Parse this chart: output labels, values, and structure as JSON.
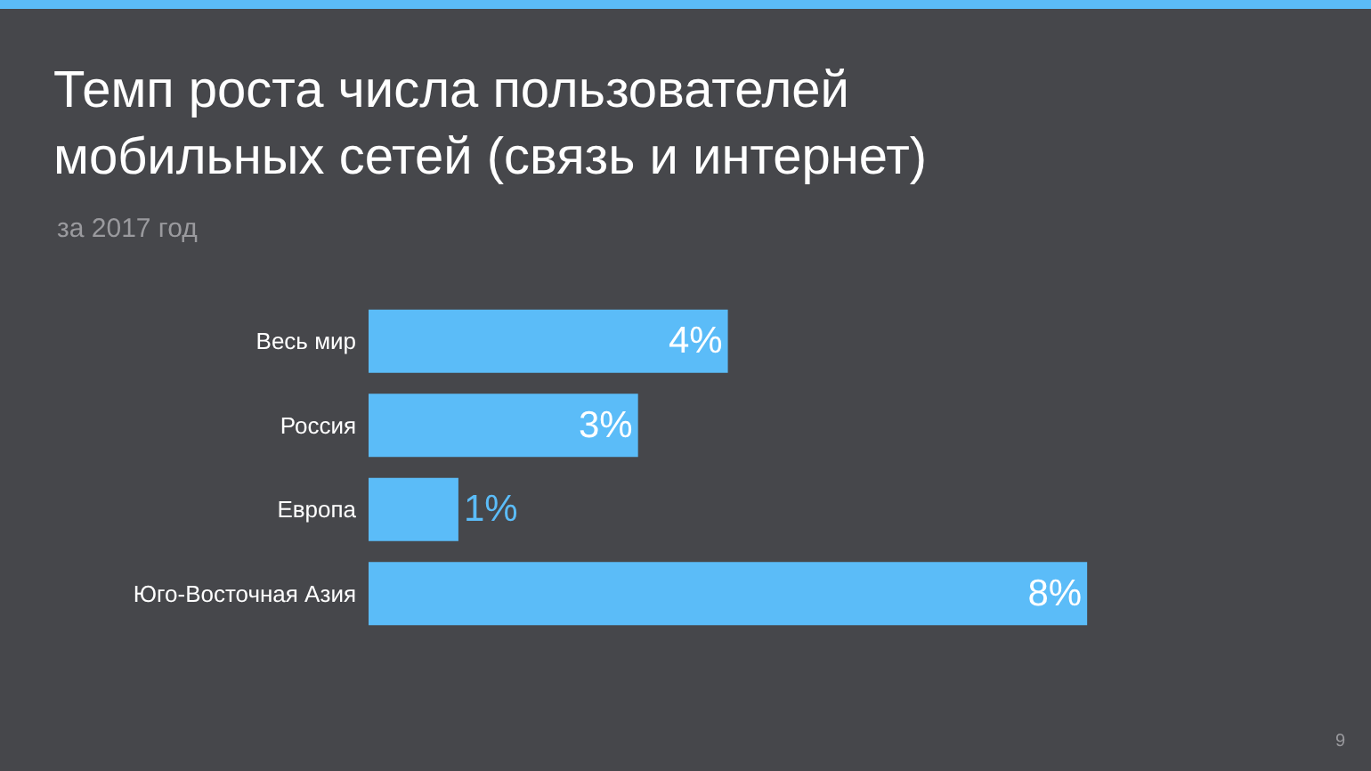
{
  "chart_data": {
    "type": "bar",
    "orientation": "horizontal",
    "title": "Темп роста числа пользователей\nмобильных сетей (связь и интернет)",
    "subtitle": "за 2017 год",
    "categories": [
      "Весь мир",
      "Россия",
      "Европа",
      "Юго-Восточная Азия"
    ],
    "values": [
      4,
      3,
      1,
      8
    ],
    "value_labels": [
      "4%",
      "3%",
      "1%",
      "8%"
    ],
    "color": "#5bbcf8",
    "grid": false,
    "annotations": [
      "9"
    ]
  }
}
